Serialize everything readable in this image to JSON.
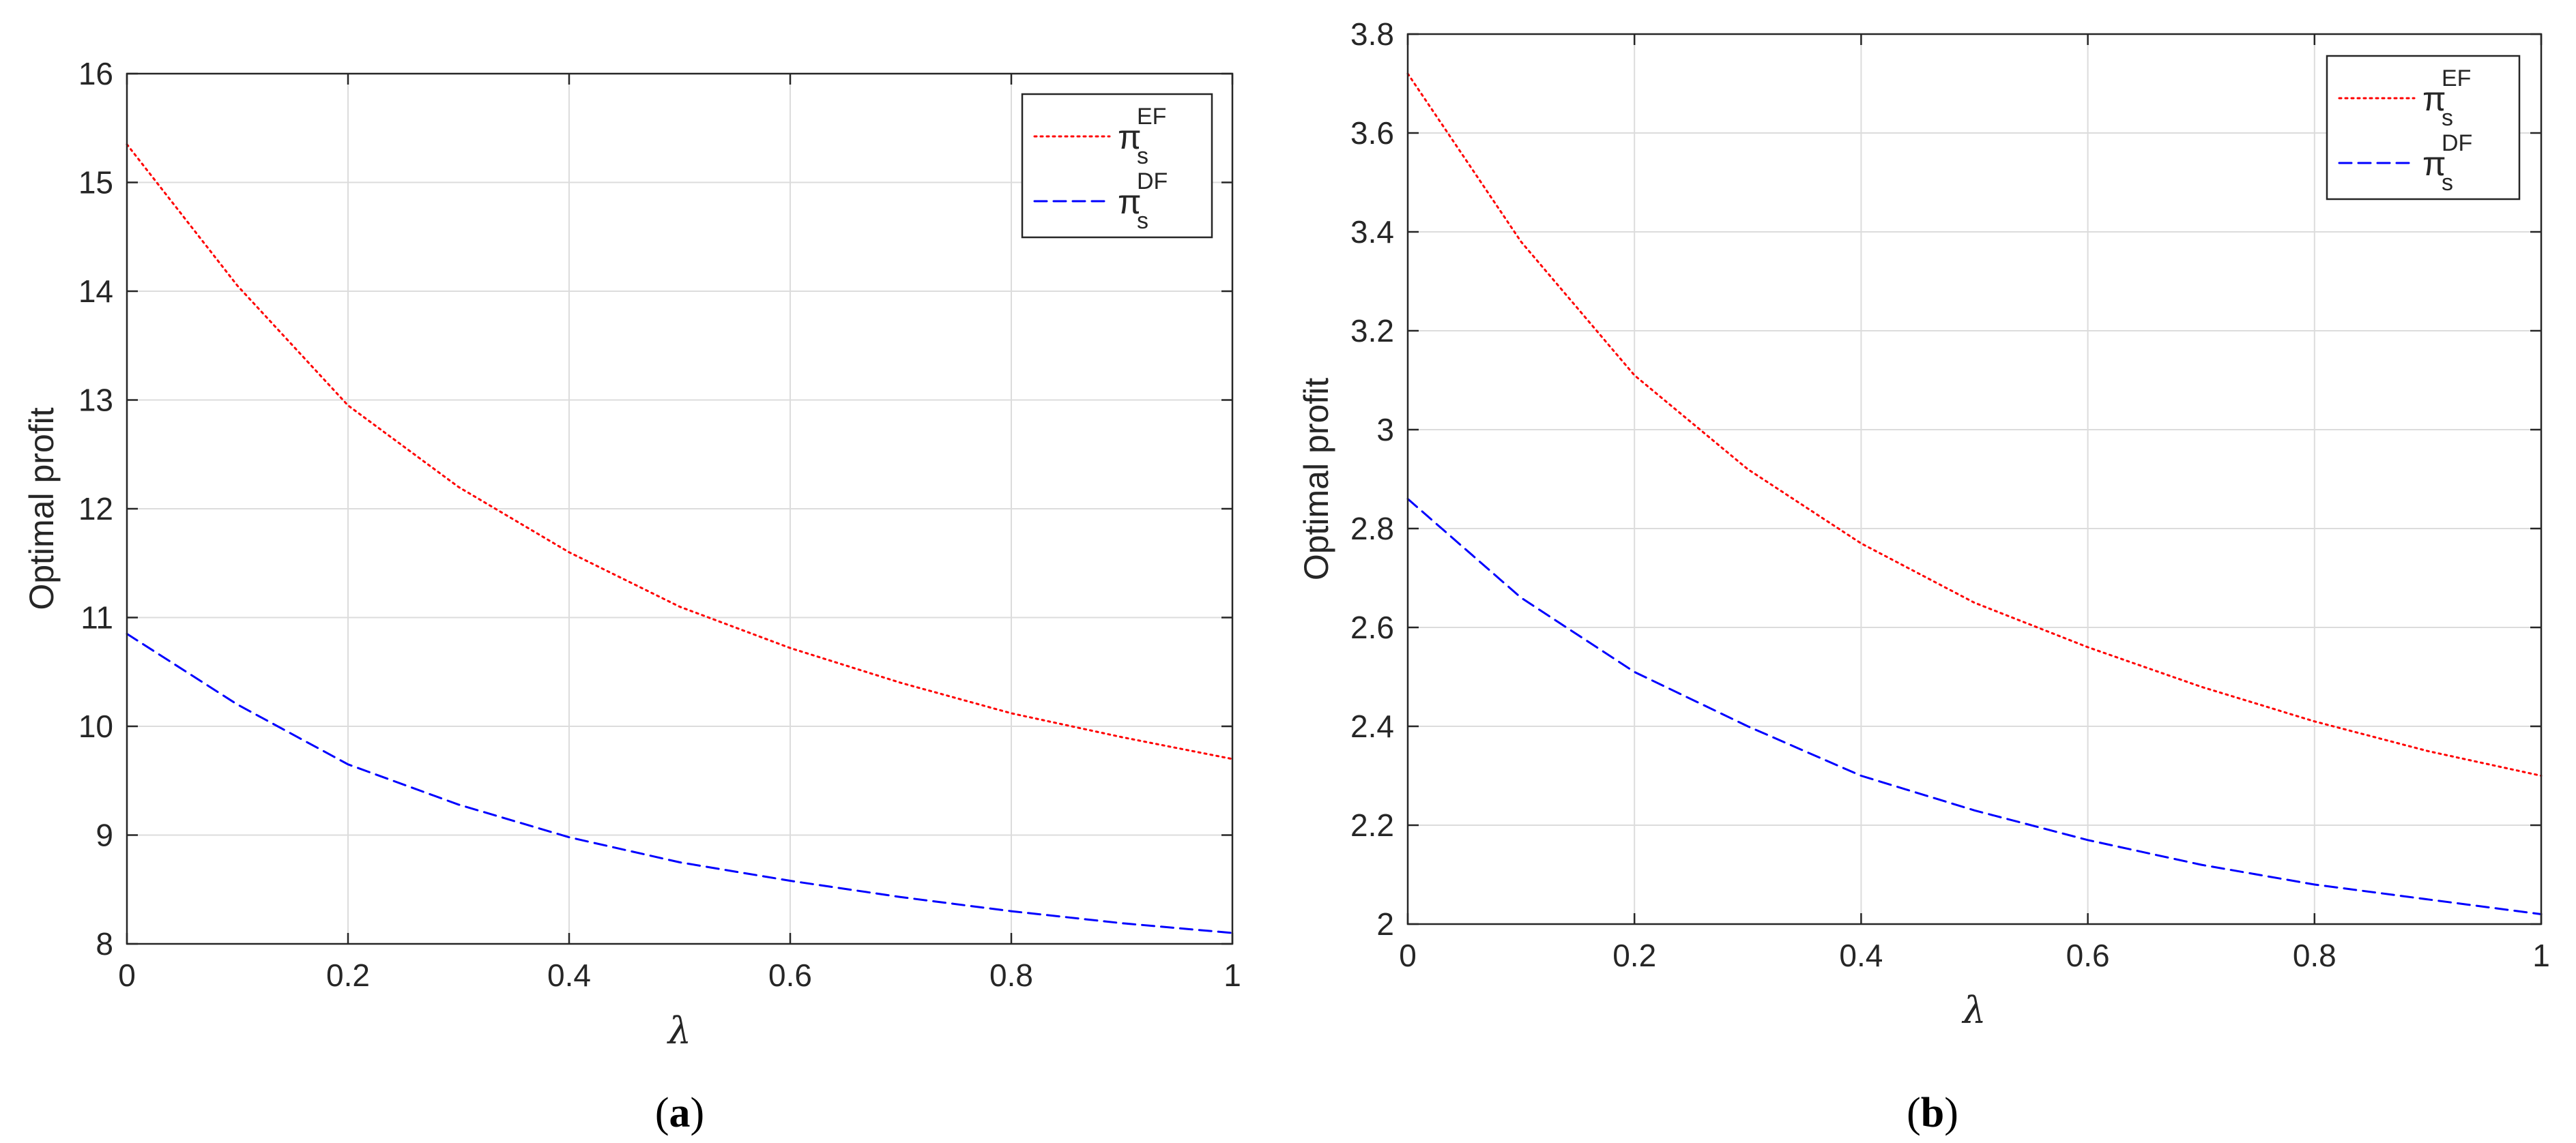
{
  "chart_data": [
    {
      "type": "line",
      "caption": {
        "open": "(",
        "letter": "a",
        "close": ")"
      },
      "xlabel": "λ",
      "ylabel": "Optimal profit",
      "xlim": [
        0,
        1
      ],
      "ylim": [
        8,
        16
      ],
      "xticks": [
        0,
        0.2,
        0.4,
        0.6,
        0.8,
        1
      ],
      "xtick_labels": [
        "0",
        "0.2",
        "0.4",
        "0.6",
        "0.8",
        "1"
      ],
      "yticks": [
        8,
        9,
        10,
        11,
        12,
        13,
        14,
        15,
        16
      ],
      "ytick_labels": [
        "8",
        "9",
        "10",
        "11",
        "12",
        "13",
        "14",
        "15",
        "16"
      ],
      "grid": true,
      "legend_position": "top-right",
      "x": [
        0,
        0.1,
        0.2,
        0.3,
        0.4,
        0.5,
        0.6,
        0.7,
        0.8,
        0.9,
        1
      ],
      "series": [
        {
          "name": "π",
          "sub": "s",
          "sup": "EF",
          "color": "#ff0000",
          "style": "dotted",
          "values": [
            15.35,
            14.05,
            12.95,
            12.2,
            11.6,
            11.1,
            10.72,
            10.4,
            10.12,
            9.9,
            9.7
          ]
        },
        {
          "name": "π",
          "sub": "s",
          "sup": "DF",
          "color": "#0000ff",
          "style": "dashed",
          "values": [
            10.85,
            10.2,
            9.65,
            9.28,
            8.98,
            8.75,
            8.58,
            8.43,
            8.3,
            8.19,
            8.1
          ]
        }
      ]
    },
    {
      "type": "line",
      "caption": {
        "open": "(",
        "letter": "b",
        "close": ")"
      },
      "xlabel": "λ",
      "ylabel": "Optimal profit",
      "xlim": [
        0,
        1
      ],
      "ylim": [
        2,
        3.8
      ],
      "xticks": [
        0,
        0.2,
        0.4,
        0.6,
        0.8,
        1
      ],
      "xtick_labels": [
        "0",
        "0.2",
        "0.4",
        "0.6",
        "0.8",
        "1"
      ],
      "yticks": [
        2,
        2.2,
        2.4,
        2.6,
        2.8,
        3,
        3.2,
        3.4,
        3.6,
        3.8
      ],
      "ytick_labels": [
        "2",
        "2.2",
        "2.4",
        "2.6",
        "2.8",
        "3",
        "3.2",
        "3.4",
        "3.6",
        "3.8"
      ],
      "grid": true,
      "legend_position": "top-right",
      "x": [
        0,
        0.1,
        0.2,
        0.3,
        0.4,
        0.5,
        0.6,
        0.7,
        0.8,
        0.9,
        1
      ],
      "series": [
        {
          "name": "π",
          "sub": "s",
          "sup": "EF",
          "color": "#ff0000",
          "style": "dotted",
          "values": [
            3.72,
            3.38,
            3.11,
            2.92,
            2.77,
            2.65,
            2.56,
            2.48,
            2.41,
            2.35,
            2.3
          ]
        },
        {
          "name": "π",
          "sub": "s",
          "sup": "DF",
          "color": "#0000ff",
          "style": "dashed",
          "values": [
            2.86,
            2.66,
            2.51,
            2.4,
            2.3,
            2.23,
            2.17,
            2.12,
            2.08,
            2.05,
            2.02
          ]
        }
      ]
    }
  ]
}
